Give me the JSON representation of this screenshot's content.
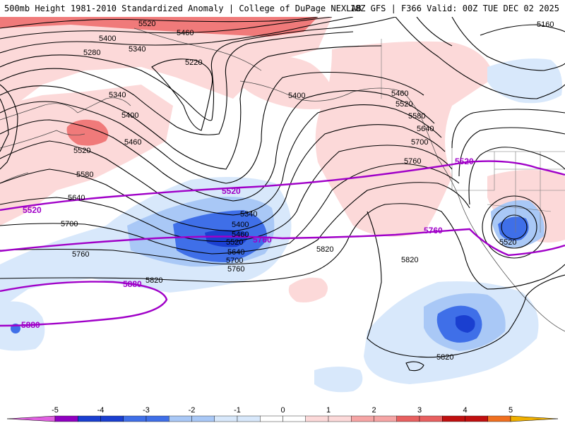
{
  "header": {
    "title_left": "500mb Height 1981-2010 Standardized Anomaly | College of DuPage NEXLAB",
    "title_right": "18Z GFS | F366 Valid: 00Z TUE DEC 02 2025"
  },
  "legend": {
    "ticks": [
      "-5",
      "-4",
      "-3",
      "-2",
      "-1",
      "0",
      "1",
      "2",
      "3",
      "4",
      "5"
    ],
    "colors": [
      "#e060e0",
      "#9000c0",
      "#1a3fd0",
      "#3f6fe8",
      "#a9c8f6",
      "#d8e8fb",
      "#ffffff",
      "#fcd9d9",
      "#f6a5a5",
      "#e86060",
      "#c01010",
      "#f07020",
      "#f0b000"
    ]
  },
  "contour_labels": {
    "black": [
      {
        "text": "5520",
        "id": "5520-nw"
      },
      {
        "text": "5460",
        "id": "5460-n"
      },
      {
        "text": "5400",
        "id": "5400-nw"
      },
      {
        "text": "5340",
        "id": "5340-n"
      },
      {
        "text": "5280",
        "id": "5280-nw"
      },
      {
        "text": "5220",
        "id": "5220-n"
      },
      {
        "text": "5160",
        "id": "5160-ne"
      },
      {
        "text": "5400",
        "id": "5400-c"
      },
      {
        "text": "5460",
        "id": "5460-ne"
      },
      {
        "text": "5520",
        "id": "5520-ne"
      },
      {
        "text": "5580",
        "id": "5580-ne"
      },
      {
        "text": "5640",
        "id": "5640-ne"
      },
      {
        "text": "5700",
        "id": "5700-ne"
      },
      {
        "text": "5760",
        "id": "5760-ne"
      },
      {
        "text": "5340",
        "id": "5340-w"
      },
      {
        "text": "5400",
        "id": "5400-w"
      },
      {
        "text": "5460",
        "id": "5460-w"
      },
      {
        "text": "5520",
        "id": "5520-w"
      },
      {
        "text": "5580",
        "id": "5580-w"
      },
      {
        "text": "5640",
        "id": "5640-w"
      },
      {
        "text": "5700",
        "id": "5700-w"
      },
      {
        "text": "5760",
        "id": "5760-w"
      },
      {
        "text": "5820",
        "id": "5820-w"
      },
      {
        "text": "5340",
        "id": "5340-low"
      },
      {
        "text": "5400",
        "id": "5400-low"
      },
      {
        "text": "5460",
        "id": "5460-low"
      },
      {
        "text": "5520",
        "id": "5520-low"
      },
      {
        "text": "5640",
        "id": "5640-low"
      },
      {
        "text": "5700",
        "id": "5700-low"
      },
      {
        "text": "5760",
        "id": "5760-low"
      },
      {
        "text": "5820",
        "id": "5820-c"
      },
      {
        "text": "5820",
        "id": "5820-c2"
      },
      {
        "text": "5820",
        "id": "5820-s"
      },
      {
        "text": "5520",
        "id": "5520-se"
      }
    ],
    "purple": [
      {
        "text": "5520",
        "id": "p5520-w"
      },
      {
        "text": "5520",
        "id": "p5520-c"
      },
      {
        "text": "5520",
        "id": "p5520-e"
      },
      {
        "text": "5760",
        "id": "p5760-c"
      },
      {
        "text": "5760",
        "id": "p5760-e"
      },
      {
        "text": "5880",
        "id": "p5880-c"
      },
      {
        "text": "5880",
        "id": "p5880-w"
      }
    ]
  }
}
